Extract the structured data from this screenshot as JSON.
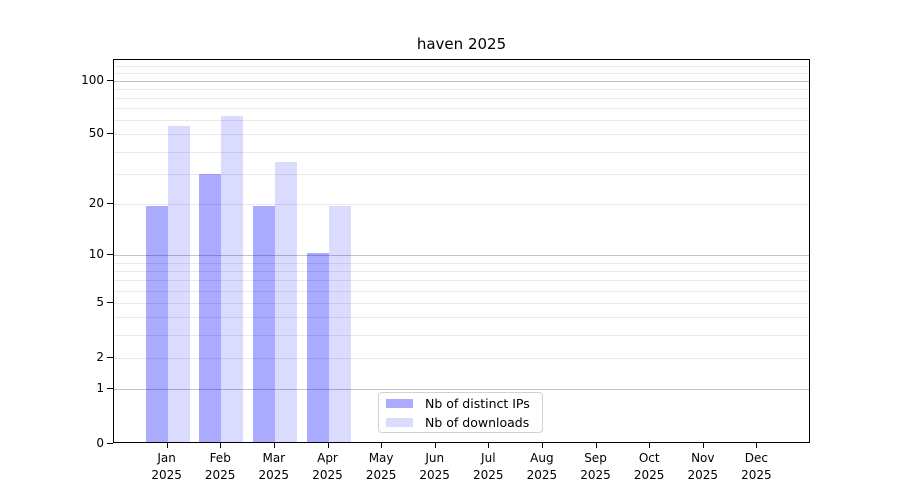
{
  "chart_data": {
    "type": "bar",
    "title": "haven 2025",
    "categories": [
      "Jan",
      "Feb",
      "Mar",
      "Apr",
      "May",
      "Jun",
      "Jul",
      "Aug",
      "Sep",
      "Oct",
      "Nov",
      "Dec"
    ],
    "category_year": "2025",
    "series": [
      {
        "name": "Nb of distinct IPs",
        "color": "rgba(0,0,255,0.335)",
        "values": [
          19,
          29,
          19,
          10,
          0,
          0,
          0,
          0,
          0,
          0,
          0,
          0
        ]
      },
      {
        "name": "Nb of downloads",
        "color": "rgba(0,0,255,0.14)",
        "values": [
          54,
          62,
          34,
          19,
          0,
          0,
          0,
          0,
          0,
          0,
          0,
          0
        ]
      }
    ],
    "xlabel": "",
    "ylabel": "",
    "yscale": "log1p",
    "ylim": [
      0,
      130
    ],
    "ytick_values": [
      0,
      1,
      2,
      5,
      10,
      20,
      50,
      100
    ],
    "major_gridlines": [
      1,
      10,
      100
    ],
    "minor_gridlines": [
      2,
      3,
      4,
      5,
      6,
      7,
      8,
      9,
      20,
      30,
      40,
      50,
      60,
      70,
      80,
      90,
      110,
      120
    ],
    "grid": "on",
    "legend_position": "lower center",
    "colors": {
      "bar_distinct_ips": "#aaaaf8",
      "bar_downloads": "#d9d9fa",
      "grid_major": "#c3c3c3",
      "grid_minor": "#e9e9e9",
      "spine": "#000000",
      "background": "#ffffff",
      "legend_border": "#d2d2d2"
    }
  }
}
